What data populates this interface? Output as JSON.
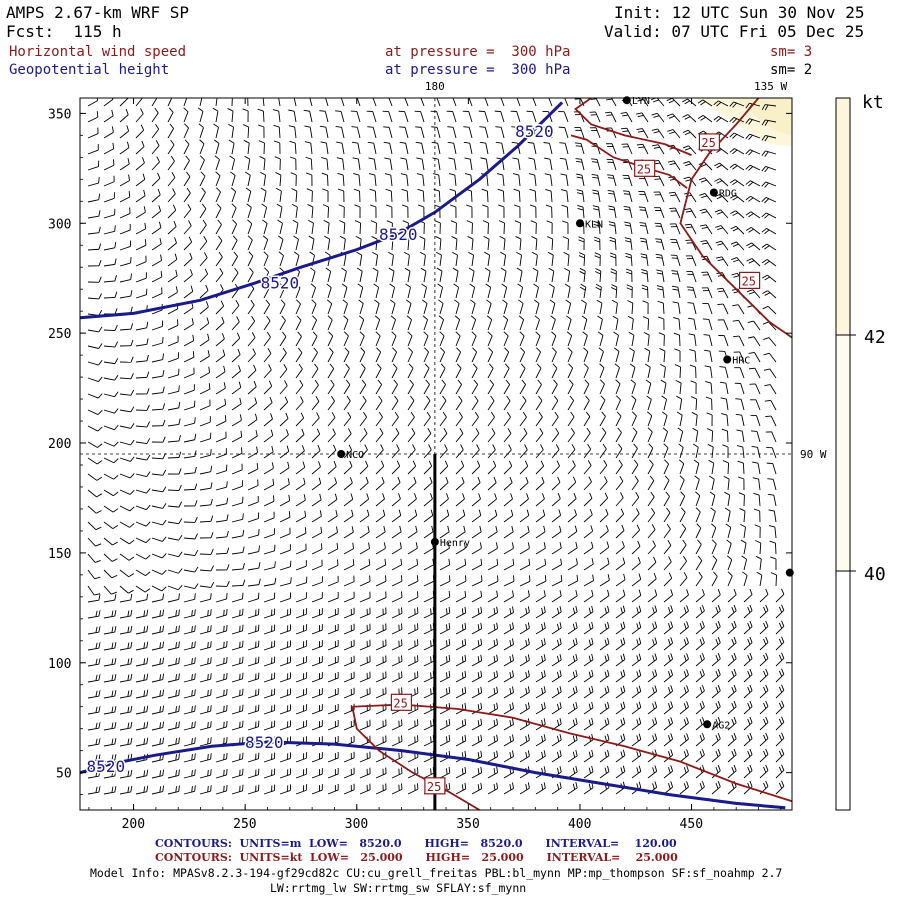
{
  "header": {
    "model": "AMPS 2.67-km WRF SP",
    "init": "Init: 12 UTC Sun 30 Nov 25",
    "fcst": "Fcst:  115 h",
    "valid": "Valid: 07 UTC Fri 05 Dec 25",
    "field1": "Horizontal wind speed",
    "field1_level": "at pressure =  300 hPa",
    "field1_sm": "sm= 3",
    "field2": "Geopotential height",
    "field2_level": "at pressure =  300 hPa",
    "field2_sm": "sm= 2"
  },
  "colors": {
    "height_contour": "#1a1a8b",
    "speed_contour": "#8b1a1a",
    "barb": "#000000",
    "shade_light": "#fcf6dc",
    "shade_mid": "#f8f0c8"
  },
  "chart_data": {
    "type": "contour",
    "x_ticks": [
      "200",
      "250",
      "300",
      "350",
      "400",
      "450"
    ],
    "y_ticks": [
      "50",
      "100",
      "150",
      "200",
      "250",
      "300",
      "350"
    ],
    "xlim": [
      176,
      495
    ],
    "ylim": [
      33,
      357
    ],
    "grid_labels": {
      "lon180": "180",
      "lon135w": "135 W",
      "lon90w": "90 W"
    },
    "height_contours": [
      {
        "value": 8520,
        "label": "8520",
        "points": [
          [
            176,
            257
          ],
          [
            200,
            259
          ],
          [
            230,
            265
          ],
          [
            255,
            273
          ],
          [
            275,
            280
          ],
          [
            300,
            288
          ],
          [
            318,
            295
          ],
          [
            335,
            305
          ],
          [
            355,
            320
          ],
          [
            372,
            335
          ],
          [
            385,
            348
          ],
          [
            392,
            355
          ]
        ]
      },
      {
        "value": 8520,
        "label": "8520",
        "points": [
          [
            176,
            50
          ],
          [
            190,
            54
          ],
          [
            210,
            58
          ],
          [
            235,
            62
          ],
          [
            260,
            64
          ],
          [
            290,
            63
          ],
          [
            320,
            60
          ],
          [
            350,
            56
          ],
          [
            380,
            50
          ],
          [
            410,
            45
          ],
          [
            440,
            40
          ],
          [
            470,
            36
          ],
          [
            492,
            34
          ]
        ]
      }
    ],
    "speed_contours": [
      {
        "value": 25,
        "label": "25",
        "points": [
          [
            450,
            331
          ],
          [
            438,
            336
          ],
          [
            420,
            340
          ],
          [
            405,
            345
          ],
          [
            398,
            352
          ],
          [
            405,
            357
          ]
        ]
      },
      {
        "value": 25,
        "label": "25",
        "points": [
          [
            480,
            357
          ],
          [
            470,
            345
          ],
          [
            458,
            332
          ],
          [
            450,
            320
          ],
          [
            445,
            300
          ],
          [
            455,
            285
          ],
          [
            470,
            270
          ],
          [
            485,
            255
          ],
          [
            495,
            248
          ]
        ]
      },
      {
        "value": 25,
        "label": "25",
        "points": [
          [
            396,
            340
          ],
          [
            403,
            338
          ],
          [
            415,
            330
          ],
          [
            430,
            325
          ],
          [
            440,
            322
          ],
          [
            448,
            316
          ]
        ]
      },
      {
        "value": 25,
        "label": "25",
        "points": [
          [
            298,
            80
          ],
          [
            320,
            81
          ],
          [
            345,
            79
          ],
          [
            370,
            75
          ],
          [
            395,
            68
          ],
          [
            420,
            62
          ],
          [
            445,
            55
          ],
          [
            470,
            45
          ],
          [
            495,
            37
          ]
        ]
      },
      {
        "value": 25,
        "label": "25",
        "points": [
          [
            298,
            80
          ],
          [
            300,
            70
          ],
          [
            310,
            60
          ],
          [
            325,
            50
          ],
          [
            340,
            42
          ],
          [
            350,
            36
          ],
          [
            355,
            33
          ]
        ]
      }
    ],
    "stations": [
      {
        "name": "LYN",
        "x": 421,
        "y": 356
      },
      {
        "name": "RDG",
        "x": 460,
        "y": 314
      },
      {
        "name": "KLN",
        "x": 400,
        "y": 300
      },
      {
        "name": "HRC",
        "x": 466,
        "y": 238
      },
      {
        "name": "NCO",
        "x": 293,
        "y": 195
      },
      {
        "name": "Henry",
        "x": 335,
        "y": 155
      },
      {
        "name": "AG2",
        "x": 457,
        "y": 72
      },
      {
        "name": "",
        "x": 494,
        "y": 141
      }
    ],
    "cross_section": {
      "x": 335,
      "y1": 195,
      "y2": 33
    },
    "colorbar": {
      "unit": "kt",
      "labels": [
        "42",
        "40"
      ]
    }
  },
  "footer": {
    "contours1": "CONTOURS:  UNITS=m  LOW=   8520.0      HIGH=   8520.0      INTERVAL=    120.00",
    "contours2": "CONTOURS:  UNITS=kt  LOW=   25.000      HIGH=   25.000      INTERVAL=    25.000",
    "model_info": "Model Info: MPASv8.2.3-194-gf29cd82c CU:cu_grell_freitas PBL:bl_mynn MP:mp_thompson SF:sf_noahmp 2.7",
    "model_info2": "LW:rrtmg_lw SW:rrtmg_sw SFLAY:sf_mynn"
  }
}
